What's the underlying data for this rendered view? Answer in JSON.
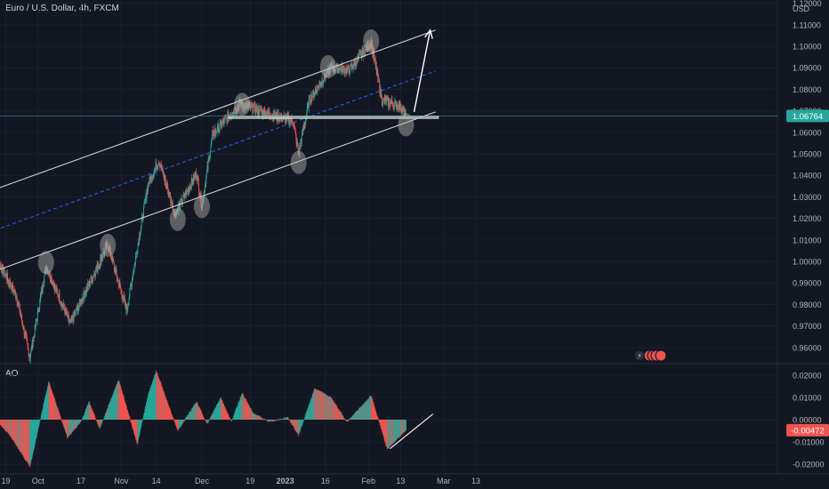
{
  "chart_data": [
    {
      "type": "candlestick",
      "title": "Euro / U.S. Dollar, 4h, FXCM",
      "currency": "USD",
      "y_ticks": [
        "1.12000",
        "1.11000",
        "1.10000",
        "1.09000",
        "1.08000",
        "1.07000",
        "1.06000",
        "1.05000",
        "1.04000",
        "1.03000",
        "1.02000",
        "1.01000",
        "1.00000",
        "0.99000",
        "0.98000",
        "0.97000",
        "0.96000"
      ],
      "ylim": [
        0.9525,
        1.1215
      ],
      "x_ticks": [
        "19",
        "Oct",
        "17",
        "Nov",
        "14",
        "Dec",
        "19",
        "2023",
        "16",
        "Feb",
        "13",
        "Mar",
        "13"
      ],
      "last_price": "1.06764",
      "last_price_value": 1.06764,
      "colors": {
        "up": "#26a69a",
        "down": "#ef5350",
        "background": "#131722",
        "grid": "#1c2030",
        "text": "#b2b5be",
        "price_line": "#26a69a",
        "channel": "#d1d4dc",
        "midline": "#2962ff"
      },
      "key_points": [
        {
          "x": "2022-09-14",
          "y": 1.005
        },
        {
          "x": "2022-09-23",
          "y": 0.984
        },
        {
          "x": "2022-09-28",
          "y": 0.955
        },
        {
          "x": "2022-10-04",
          "y": 0.998
        },
        {
          "x": "2022-10-13",
          "y": 0.971
        },
        {
          "x": "2022-10-27",
          "y": 1.008
        },
        {
          "x": "2022-11-03",
          "y": 0.977
        },
        {
          "x": "2022-11-11",
          "y": 1.036
        },
        {
          "x": "2022-11-15",
          "y": 1.047
        },
        {
          "x": "2022-11-21",
          "y": 1.022
        },
        {
          "x": "2022-11-29",
          "y": 1.041
        },
        {
          "x": "2022-12-01",
          "y": 1.026
        },
        {
          "x": "2022-12-05",
          "y": 1.059
        },
        {
          "x": "2022-12-15",
          "y": 1.073
        },
        {
          "x": "2023-01-04",
          "y": 1.065
        },
        {
          "x": "2023-01-06",
          "y": 1.05
        },
        {
          "x": "2023-01-10",
          "y": 1.075
        },
        {
          "x": "2023-01-18",
          "y": 1.09
        },
        {
          "x": "2023-01-25",
          "y": 1.089
        },
        {
          "x": "2023-02-02",
          "y": 1.102
        },
        {
          "x": "2023-02-06",
          "y": 1.075
        },
        {
          "x": "2023-02-13",
          "y": 1.072
        },
        {
          "x": "2023-02-15",
          "y": 1.0676
        }
      ],
      "annotations": {
        "upper_channel": [
          [
            "2022-09-15",
            1.0335
          ],
          [
            "2023-02-26",
            1.1075
          ]
        ],
        "lower_channel": [
          [
            "2022-09-15",
            0.9955
          ],
          [
            "2023-02-26",
            1.0695
          ]
        ],
        "mid_channel": [
          [
            "2022-09-15",
            1.0145
          ],
          [
            "2023-02-26",
            1.0885
          ]
        ],
        "support_zone": [
          [
            "2022-12-11",
            1.0675
          ],
          [
            "2023-02-27",
            1.0665
          ]
        ],
        "projection_arrow": [
          [
            "2023-02-18",
            1.0695
          ],
          [
            "2023-02-24",
            1.1075
          ]
        ],
        "circles": [
          [
            "2022-10-04",
            0.9995
          ],
          [
            "2022-10-27",
            1.0075
          ],
          [
            "2022-11-22",
            1.0195
          ],
          [
            "2022-12-01",
            1.0255
          ],
          [
            "2022-12-16",
            1.073
          ],
          [
            "2023-01-06",
            1.046
          ],
          [
            "2023-01-17",
            1.0905
          ],
          [
            "2023-02-02",
            1.1025
          ],
          [
            "2023-02-15",
            1.0635
          ]
        ]
      }
    },
    {
      "type": "histogram",
      "title": "AO",
      "y_ticks": [
        "0.02000",
        "0.01000",
        "0.00000",
        "-0.01000",
        "-0.02000"
      ],
      "ylim": [
        -0.0235,
        0.0235
      ],
      "last_value": "-0.00472",
      "last_value_num": -0.00472,
      "key_points": [
        {
          "x": "2022-09-14",
          "y": 0.001
        },
        {
          "x": "2022-09-20",
          "y": -0.006
        },
        {
          "x": "2022-09-28",
          "y": -0.021
        },
        {
          "x": "2022-10-05",
          "y": 0.017
        },
        {
          "x": "2022-10-12",
          "y": -0.008
        },
        {
          "x": "2022-10-17",
          "y": -0.001
        },
        {
          "x": "2022-10-20",
          "y": 0.008
        },
        {
          "x": "2022-10-24",
          "y": -0.004
        },
        {
          "x": "2022-10-31",
          "y": 0.018
        },
        {
          "x": "2022-11-07",
          "y": -0.011
        },
        {
          "x": "2022-11-11",
          "y": 0.011
        },
        {
          "x": "2022-11-14",
          "y": 0.022
        },
        {
          "x": "2022-11-22",
          "y": -0.005
        },
        {
          "x": "2022-11-29",
          "y": 0.008
        },
        {
          "x": "2022-12-03",
          "y": -0.002
        },
        {
          "x": "2022-12-08",
          "y": 0.01
        },
        {
          "x": "2022-12-12",
          "y": -0.001
        },
        {
          "x": "2022-12-16",
          "y": 0.012
        },
        {
          "x": "2022-12-20",
          "y": 0.003
        },
        {
          "x": "2022-12-26",
          "y": -0.001
        },
        {
          "x": "2023-01-02",
          "y": 0.001
        },
        {
          "x": "2023-01-06",
          "y": -0.007
        },
        {
          "x": "2023-01-12",
          "y": 0.014
        },
        {
          "x": "2023-01-18",
          "y": 0.01
        },
        {
          "x": "2023-01-24",
          "y": -0.001
        },
        {
          "x": "2023-01-31",
          "y": 0.008
        },
        {
          "x": "2023-02-02",
          "y": 0.011
        },
        {
          "x": "2023-02-08",
          "y": -0.013
        },
        {
          "x": "2023-02-15",
          "y": -0.0047
        }
      ],
      "annotations": {
        "divergence_line": [
          [
            "2023-02-09",
            -0.013
          ],
          [
            "2023-02-25",
            0.0025
          ]
        ]
      }
    }
  ]
}
